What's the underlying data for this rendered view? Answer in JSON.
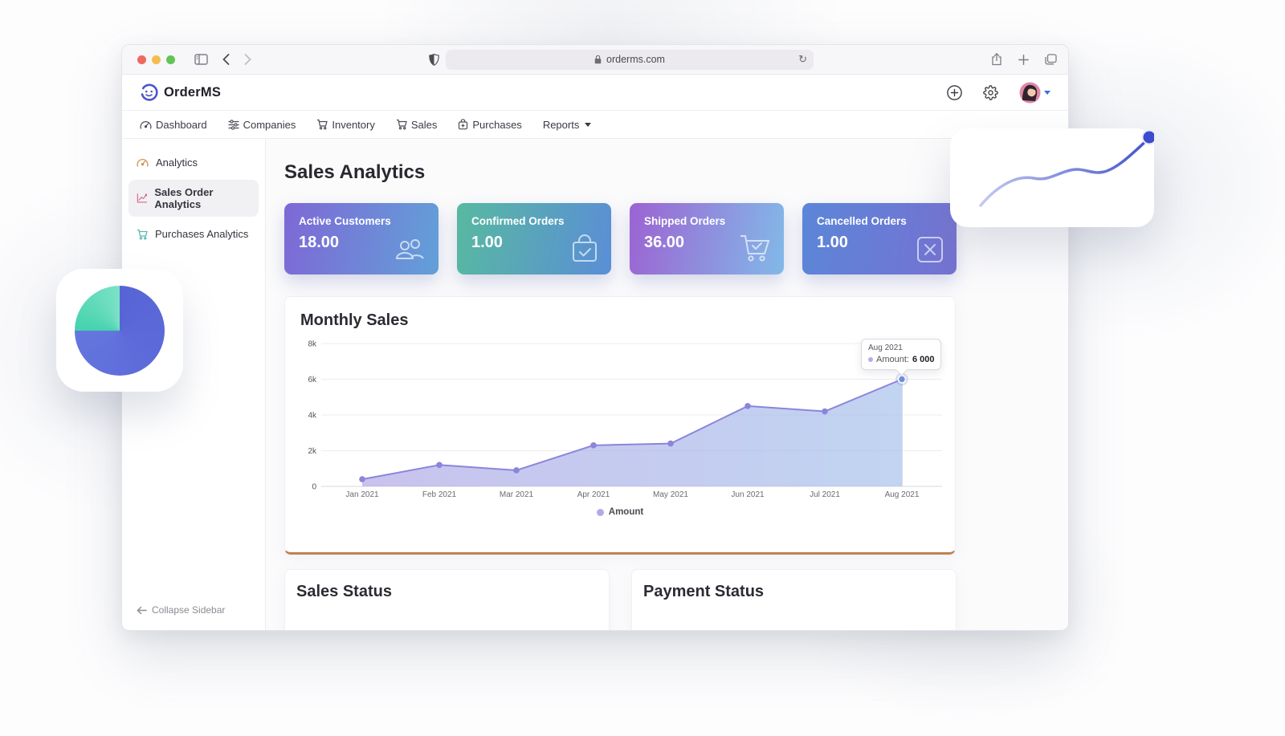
{
  "browser": {
    "url": "orderms.com",
    "traffic_lights": {
      "close": "#ee6a5f",
      "minimize": "#f5bd4f",
      "zoom": "#61c454"
    }
  },
  "header": {
    "brand": "OrderMS"
  },
  "nav": {
    "items": [
      {
        "label": "Dashboard"
      },
      {
        "label": "Companies"
      },
      {
        "label": "Inventory"
      },
      {
        "label": "Sales"
      },
      {
        "label": "Purchases"
      },
      {
        "label": "Reports"
      }
    ]
  },
  "sidebar": {
    "items": [
      {
        "label": "Analytics"
      },
      {
        "label": "Sales Order Analytics"
      },
      {
        "label": "Purchases Analytics"
      }
    ],
    "collapse_label": "Collapse Sidebar"
  },
  "main": {
    "title": "Sales Analytics",
    "stat_cards": [
      {
        "label": "Active Customers",
        "value": "18.00",
        "icon": "users-icon",
        "gradient": [
          "#7e68d6",
          "#62a0d8"
        ]
      },
      {
        "label": "Confirmed Orders",
        "value": "1.00",
        "icon": "bag-check-icon",
        "gradient": [
          "#58b9a0",
          "#5a8ed7"
        ]
      },
      {
        "label": "Shipped Orders",
        "value": "36.00",
        "icon": "cart-check-icon",
        "gradient": [
          "#9c63d2",
          "#82b9e8"
        ]
      },
      {
        "label": "Cancelled Orders",
        "value": "1.00",
        "icon": "x-square-icon",
        "gradient": [
          "#5b86d8",
          "#7672d2"
        ]
      }
    ],
    "sales_status_title": "Sales Status",
    "payment_status_title": "Payment Status"
  },
  "chart_data": {
    "type": "area",
    "title": "Monthly Sales",
    "x": [
      "Jan 2021",
      "Feb 2021",
      "Mar 2021",
      "Apr 2021",
      "May 2021",
      "Jun 2021",
      "Jul 2021",
      "Aug 2021"
    ],
    "series": [
      {
        "name": "Amount",
        "values": [
          400,
          1200,
          900,
          2300,
          2400,
          4500,
          4200,
          6000
        ]
      }
    ],
    "ylim": [
      0,
      8000
    ],
    "yticks": [
      {
        "value": 0,
        "label": "0"
      },
      {
        "value": 2000,
        "label": "2k"
      },
      {
        "value": 4000,
        "label": "4k"
      },
      {
        "value": 6000,
        "label": "6k"
      },
      {
        "value": 8000,
        "label": "8k"
      }
    ],
    "grid": true,
    "legend_position": "bottom",
    "line_color": "#8b85da",
    "fill_colors": [
      "#a79ee3",
      "#a4c0eb"
    ],
    "tooltip": {
      "title": "Aug 2021",
      "label": "Amount:",
      "value": "6 000"
    }
  }
}
